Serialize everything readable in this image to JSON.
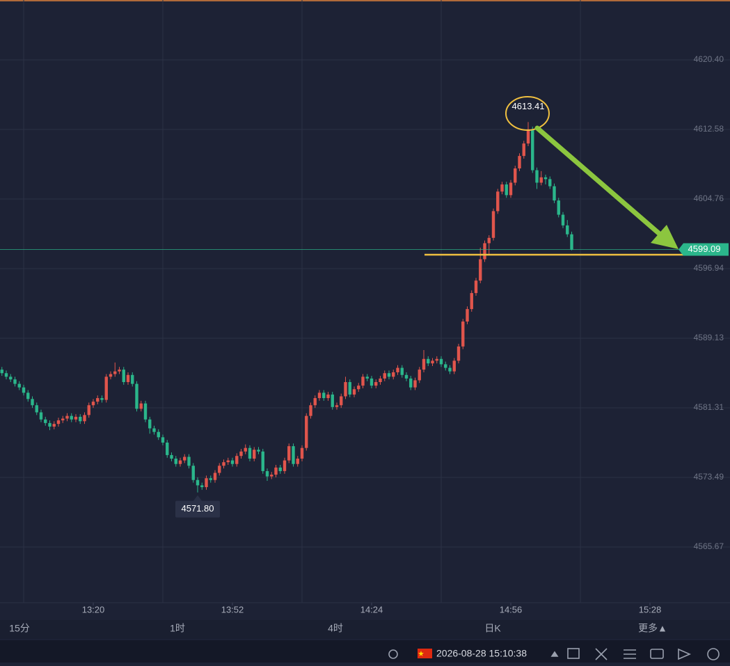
{
  "chart_data": {
    "type": "candlestick",
    "up_color": "#e0554c",
    "down_color": "#2bb68b",
    "xlim": [
      778.56,
      935.36
    ],
    "xticks": [
      {
        "value": 800,
        "label": "13:20"
      },
      {
        "value": 832,
        "label": "13:52"
      },
      {
        "value": 864,
        "label": "14:24"
      },
      {
        "value": 896,
        "label": "14:56"
      },
      {
        "value": 928,
        "label": "15:28"
      }
    ],
    "ylim": [
      4559.42,
      4627.12
    ],
    "yticks": [
      {
        "value": 4620.4,
        "label": "4620.40"
      },
      4612.58,
      4604.76,
      4596.94,
      4589.13,
      4581.31,
      4573.49,
      4565.67
    ],
    "grid": true,
    "x": [
      779,
      780,
      781,
      782,
      783,
      784,
      785,
      786,
      787,
      788,
      789,
      790,
      791,
      792,
      793,
      794,
      795,
      796,
      797,
      798,
      799,
      800,
      801,
      802,
      803,
      804,
      805,
      806,
      807,
      808,
      809,
      810,
      811,
      812,
      813,
      814,
      815,
      816,
      817,
      818,
      819,
      820,
      821,
      822,
      823,
      824,
      825,
      826,
      827,
      828,
      829,
      830,
      831,
      832,
      833,
      834,
      835,
      836,
      837,
      838,
      839,
      840,
      841,
      842,
      843,
      844,
      845,
      846,
      847,
      848,
      849,
      850,
      851,
      852,
      853,
      854,
      855,
      856,
      857,
      858,
      859,
      860,
      861,
      862,
      863,
      864,
      865,
      866,
      867,
      868,
      869,
      870,
      871,
      872,
      873,
      874,
      875,
      876,
      877,
      878,
      879,
      880,
      881,
      882,
      883,
      884,
      885,
      886,
      887,
      888,
      889,
      890,
      891,
      892,
      893,
      894,
      895,
      896,
      897,
      898,
      899,
      900,
      901,
      902,
      903,
      904,
      905,
      906,
      907,
      908,
      909,
      910
    ],
    "candles": [
      [
        4585.6,
        4585.9,
        4584.9,
        4585.2
      ],
      [
        4585.2,
        4585.5,
        4584.5,
        4584.8
      ],
      [
        4584.8,
        4585.1,
        4584.2,
        4584.5
      ],
      [
        4584.5,
        4584.8,
        4583.7,
        4584.0
      ],
      [
        4584.0,
        4584.3,
        4583.3,
        4583.6
      ],
      [
        4583.6,
        4583.9,
        4582.7,
        4583.0
      ],
      [
        4583.0,
        4583.3,
        4582.0,
        4582.3
      ],
      [
        4582.3,
        4582.6,
        4581.3,
        4581.6
      ],
      [
        4581.6,
        4581.9,
        4580.5,
        4580.8
      ],
      [
        4580.8,
        4581.1,
        4579.7,
        4580.0
      ],
      [
        4580.0,
        4580.3,
        4579.3,
        4579.6
      ],
      [
        4579.6,
        4579.9,
        4578.8,
        4579.2
      ],
      [
        4579.2,
        4579.8,
        4578.9,
        4579.5
      ],
      [
        4579.5,
        4580.2,
        4579.2,
        4579.9
      ],
      [
        4579.9,
        4580.4,
        4579.6,
        4580.1
      ],
      [
        4580.1,
        4580.7,
        4579.8,
        4580.4
      ],
      [
        4580.4,
        4580.7,
        4579.7,
        4580.0
      ],
      [
        4580.0,
        4580.6,
        4579.7,
        4580.3
      ],
      [
        4580.3,
        4580.6,
        4579.5,
        4579.8
      ],
      [
        4579.8,
        4580.8,
        4579.5,
        4580.5
      ],
      [
        4580.5,
        4581.9,
        4580.2,
        4581.6
      ],
      [
        4581.6,
        4582.3,
        4581.3,
        4582.0
      ],
      [
        4582.0,
        4582.7,
        4581.7,
        4582.4
      ],
      [
        4582.4,
        4582.7,
        4581.9,
        4582.2
      ],
      [
        4582.2,
        4585.1,
        4581.9,
        4584.8
      ],
      [
        4584.8,
        4585.4,
        4584.5,
        4585.1
      ],
      [
        4585.1,
        4586.4,
        4584.8,
        4585.4
      ],
      [
        4585.4,
        4585.9,
        4585.1,
        4585.6
      ],
      [
        4585.6,
        4585.9,
        4583.9,
        4584.2
      ],
      [
        4584.2,
        4585.3,
        4583.9,
        4585.0
      ],
      [
        4585.0,
        4585.3,
        4583.7,
        4584.0
      ],
      [
        4584.0,
        4584.3,
        4580.9,
        4581.2
      ],
      [
        4581.2,
        4582.1,
        4580.9,
        4581.8
      ],
      [
        4581.8,
        4582.1,
        4579.7,
        4580.0
      ],
      [
        4580.0,
        4580.3,
        4578.4,
        4579.0
      ],
      [
        4579.0,
        4579.3,
        4578.3,
        4578.6
      ],
      [
        4578.6,
        4578.9,
        4577.7,
        4578.0
      ],
      [
        4578.0,
        4578.3,
        4577.1,
        4577.4
      ],
      [
        4577.4,
        4577.7,
        4575.7,
        4576.0
      ],
      [
        4576.0,
        4576.3,
        4575.3,
        4575.6
      ],
      [
        4575.6,
        4575.9,
        4574.7,
        4575.0
      ],
      [
        4575.0,
        4575.7,
        4574.7,
        4575.4
      ],
      [
        4575.4,
        4576.1,
        4575.1,
        4575.8
      ],
      [
        4575.8,
        4576.1,
        4574.5,
        4574.8
      ],
      [
        4574.8,
        4575.1,
        4572.9,
        4573.2
      ],
      [
        4573.2,
        4573.5,
        4571.8,
        4572.6
      ],
      [
        4572.6,
        4572.9,
        4572.1,
        4572.4
      ],
      [
        4572.4,
        4573.7,
        4572.1,
        4573.4
      ],
      [
        4573.4,
        4573.7,
        4572.9,
        4573.2
      ],
      [
        4573.2,
        4574.3,
        4572.9,
        4574.0
      ],
      [
        4574.0,
        4575.1,
        4573.7,
        4574.8
      ],
      [
        4574.8,
        4575.5,
        4574.5,
        4575.2
      ],
      [
        4575.2,
        4575.7,
        4574.9,
        4575.4
      ],
      [
        4575.4,
        4575.7,
        4574.7,
        4575.0
      ],
      [
        4575.0,
        4576.2,
        4574.7,
        4575.9
      ],
      [
        4575.9,
        4576.7,
        4575.6,
        4576.4
      ],
      [
        4576.4,
        4577.2,
        4576.1,
        4576.8
      ],
      [
        4576.8,
        4577.1,
        4575.3,
        4575.6
      ],
      [
        4575.6,
        4576.9,
        4575.3,
        4576.6
      ],
      [
        4576.6,
        4576.9,
        4576.1,
        4576.4
      ],
      [
        4576.4,
        4576.7,
        4573.9,
        4574.2
      ],
      [
        4574.2,
        4574.5,
        4573.1,
        4573.6
      ],
      [
        4573.6,
        4574.1,
        4573.3,
        4573.8
      ],
      [
        4573.8,
        4574.9,
        4573.5,
        4574.6
      ],
      [
        4574.6,
        4574.9,
        4573.9,
        4574.2
      ],
      [
        4574.2,
        4575.7,
        4573.9,
        4575.4
      ],
      [
        4575.4,
        4577.3,
        4575.1,
        4577.0
      ],
      [
        4577.0,
        4577.3,
        4574.7,
        4575.0
      ],
      [
        4575.0,
        4575.9,
        4574.7,
        4575.6
      ],
      [
        4575.6,
        4577.1,
        4575.3,
        4576.8
      ],
      [
        4576.8,
        4580.7,
        4576.5,
        4580.4
      ],
      [
        4580.4,
        4581.9,
        4580.1,
        4581.6
      ],
      [
        4581.6,
        4582.7,
        4581.3,
        4582.4
      ],
      [
        4582.4,
        4583.3,
        4582.1,
        4583.0
      ],
      [
        4583.0,
        4583.3,
        4582.1,
        4582.4
      ],
      [
        4582.4,
        4583.1,
        4582.1,
        4582.8
      ],
      [
        4582.8,
        4583.1,
        4581.1,
        4581.4
      ],
      [
        4581.4,
        4581.9,
        4581.1,
        4581.6
      ],
      [
        4581.6,
        4582.9,
        4581.3,
        4582.6
      ],
      [
        4582.6,
        4584.8,
        4582.3,
        4584.2
      ],
      [
        4584.2,
        4584.5,
        4582.5,
        4582.8
      ],
      [
        4582.8,
        4583.7,
        4582.5,
        4583.4
      ],
      [
        4583.4,
        4584.1,
        4583.1,
        4583.8
      ],
      [
        4583.8,
        4585.1,
        4583.5,
        4584.8
      ],
      [
        4584.8,
        4585.1,
        4584.3,
        4584.6
      ],
      [
        4584.6,
        4584.9,
        4583.5,
        4583.8
      ],
      [
        4583.8,
        4584.5,
        4583.5,
        4584.2
      ],
      [
        4584.2,
        4584.9,
        4583.9,
        4584.6
      ],
      [
        4584.6,
        4585.5,
        4584.3,
        4585.2
      ],
      [
        4585.2,
        4585.5,
        4584.5,
        4584.8
      ],
      [
        4584.8,
        4585.6,
        4584.5,
        4585.3
      ],
      [
        4585.3,
        4586.1,
        4585.0,
        4585.8
      ],
      [
        4585.8,
        4586.1,
        4584.7,
        4585.0
      ],
      [
        4585.0,
        4585.3,
        4584.3,
        4584.6
      ],
      [
        4584.6,
        4584.9,
        4583.3,
        4583.6
      ],
      [
        4583.6,
        4584.7,
        4583.3,
        4584.4
      ],
      [
        4584.4,
        4585.9,
        4584.1,
        4585.6
      ],
      [
        4585.6,
        4587.8,
        4585.3,
        4586.8
      ],
      [
        4586.8,
        4587.1,
        4586.0,
        4586.3
      ],
      [
        4586.3,
        4586.9,
        4586.0,
        4586.6
      ],
      [
        4586.6,
        4587.1,
        4586.3,
        4586.8
      ],
      [
        4586.8,
        4587.1,
        4585.9,
        4586.2
      ],
      [
        4586.2,
        4586.5,
        4585.5,
        4585.8
      ],
      [
        4585.8,
        4586.1,
        4585.1,
        4585.4
      ],
      [
        4585.4,
        4586.9,
        4585.1,
        4586.6
      ],
      [
        4586.6,
        4588.5,
        4586.3,
        4588.2
      ],
      [
        4588.2,
        4591.3,
        4587.9,
        4591.0
      ],
      [
        4591.0,
        4592.7,
        4590.7,
        4592.4
      ],
      [
        4592.4,
        4594.5,
        4592.1,
        4594.2
      ],
      [
        4594.2,
        4595.9,
        4593.9,
        4595.6
      ],
      [
        4595.6,
        4599.3,
        4595.3,
        4598.0
      ],
      [
        4598.0,
        4600.1,
        4597.7,
        4599.8
      ],
      [
        4599.8,
        4600.7,
        4598.5,
        4600.4
      ],
      [
        4600.4,
        4603.7,
        4600.1,
        4603.4
      ],
      [
        4603.4,
        4605.9,
        4603.1,
        4605.6
      ],
      [
        4605.6,
        4606.7,
        4605.3,
        4606.4
      ],
      [
        4606.4,
        4606.7,
        4604.9,
        4605.2
      ],
      [
        4605.2,
        4606.9,
        4604.9,
        4606.6
      ],
      [
        4606.6,
        4608.5,
        4606.3,
        4608.2
      ],
      [
        4608.2,
        4609.9,
        4607.9,
        4609.6
      ],
      [
        4609.6,
        4611.3,
        4609.3,
        4611.0
      ],
      [
        4611.0,
        4613.41,
        4610.7,
        4612.6
      ],
      [
        4612.6,
        4612.9,
        4607.7,
        4608.0
      ],
      [
        4608.0,
        4608.3,
        4605.9,
        4606.6
      ],
      [
        4606.6,
        4607.9,
        4606.3,
        4607.2
      ],
      [
        4607.2,
        4607.5,
        4606.4,
        4607.0
      ],
      [
        4607.0,
        4607.3,
        4605.9,
        4606.2
      ],
      [
        4606.2,
        4606.5,
        4604.3,
        4604.6
      ],
      [
        4604.6,
        4604.9,
        4602.7,
        4603.0
      ],
      [
        4603.0,
        4603.3,
        4601.5,
        4601.8
      ],
      [
        4601.8,
        4602.4,
        4600.5,
        4600.8
      ],
      [
        4600.8,
        4601.1,
        4599.0,
        4599.09
      ]
    ],
    "high_label": 4613.41,
    "low_label": {
      "value": 4571.8,
      "label": "4571.80"
    },
    "last_price": 4599.09,
    "last_price_color": "#2bb68b"
  },
  "periods": [
    "15分",
    "1时",
    "4时",
    "日K",
    "更多▲"
  ],
  "status": {
    "datetime": "2026-08-28 15:10:38"
  }
}
